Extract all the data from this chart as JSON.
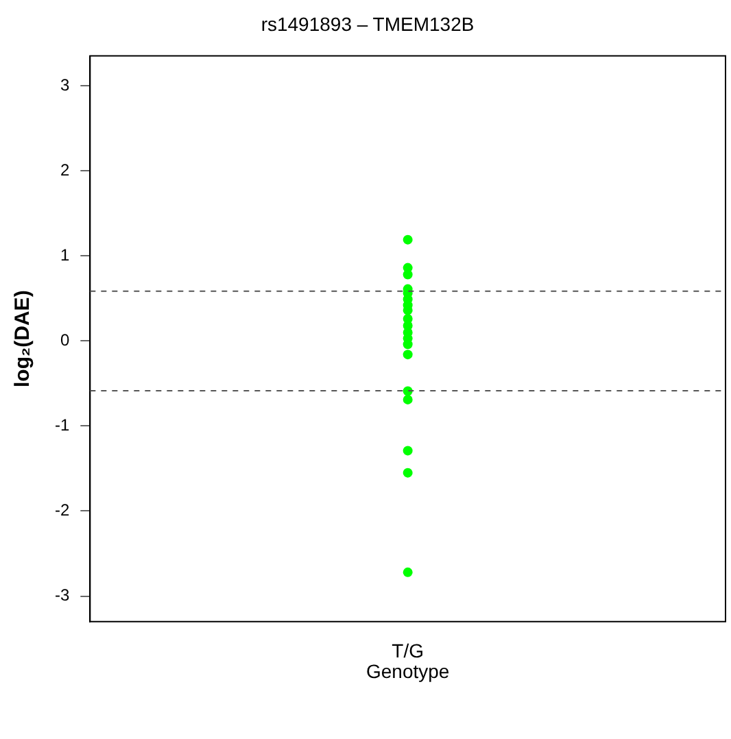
{
  "chart_data": {
    "type": "scatter",
    "title": "rs1491893 – TMEM132B",
    "xlabel": "Genotype",
    "ylabel": "log₂(DAE)",
    "categories": [
      "T/G"
    ],
    "series": [
      {
        "color": "#00ff00",
        "x": [
          "T/G",
          "T/G",
          "T/G",
          "T/G",
          "T/G",
          "T/G",
          "T/G",
          "T/G",
          "T/G",
          "T/G",
          "T/G",
          "T/G",
          "T/G",
          "T/G",
          "T/G",
          "T/G",
          "T/G",
          "T/G",
          "T/G"
        ],
        "values": [
          1.19,
          0.86,
          0.78,
          0.61,
          0.56,
          0.49,
          0.42,
          0.36,
          0.26,
          0.18,
          0.1,
          0.03,
          -0.04,
          -0.16,
          -0.59,
          -0.69,
          -1.29,
          -1.55,
          -2.72
        ]
      }
    ],
    "ylim": [
      -3.3,
      3.35
    ],
    "yticks": [
      -3,
      -2,
      -1,
      0,
      1,
      2,
      3
    ],
    "ref_lines": [
      {
        "axis": "y",
        "value": 0.585,
        "color": "#555555",
        "line_style": "dashed"
      },
      {
        "axis": "y",
        "value": -0.585,
        "color": "#555555",
        "line_style": "dashed"
      }
    ],
    "grid": false,
    "legend": false,
    "marker": "circle"
  }
}
